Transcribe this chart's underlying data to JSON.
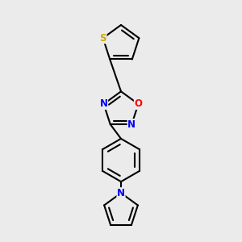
{
  "bg_color": "#ebebeb",
  "bond_color": "#000000",
  "atom_colors": {
    "S": "#ccaa00",
    "O": "#ff0000",
    "N": "#0000ff"
  },
  "bond_width": 1.5,
  "font_size": 8.5
}
